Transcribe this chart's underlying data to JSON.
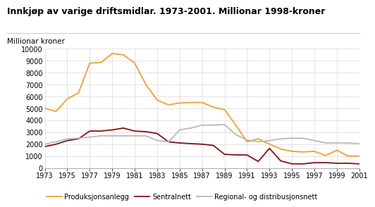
{
  "title": "Innkjøp av varige driftsmidlar. 1973-2001. Millionar 1998-kroner",
  "ylabel": "Millionar kroner",
  "years": [
    1973,
    1974,
    1975,
    1976,
    1977,
    1978,
    1979,
    1980,
    1981,
    1982,
    1983,
    1984,
    1985,
    1986,
    1987,
    1988,
    1989,
    1990,
    1991,
    1992,
    1993,
    1994,
    1995,
    1996,
    1997,
    1998,
    1999,
    2000,
    2001
  ],
  "produksjonsanlegg": [
    5000,
    4750,
    5800,
    6300,
    8800,
    8850,
    9600,
    9500,
    8800,
    7000,
    5700,
    5300,
    5450,
    5500,
    5500,
    5100,
    4900,
    3600,
    2200,
    2450,
    2000,
    1600,
    1400,
    1350,
    1400,
    1050,
    1500,
    1000,
    1000
  ],
  "sentralnett": [
    1800,
    2000,
    2300,
    2450,
    3100,
    3100,
    3200,
    3350,
    3100,
    3050,
    2900,
    2200,
    2100,
    2050,
    2000,
    1900,
    1150,
    1100,
    1100,
    550,
    1650,
    600,
    350,
    350,
    450,
    450,
    400,
    400,
    350
  ],
  "regionalnett": [
    2000,
    2200,
    2450,
    2500,
    2600,
    2700,
    2700,
    2700,
    2700,
    2700,
    2300,
    2200,
    3200,
    3350,
    3600,
    3600,
    3650,
    2800,
    2350,
    2200,
    2300,
    2450,
    2500,
    2500,
    2300,
    2100,
    2100,
    2100,
    2050
  ],
  "prod_color": "#f0a030",
  "sent_color": "#7b1515",
  "reg_color": "#b8b8b8",
  "ylim": [
    0,
    10000
  ],
  "yticks": [
    0,
    1000,
    2000,
    3000,
    4000,
    5000,
    6000,
    7000,
    8000,
    9000,
    10000
  ],
  "xticks": [
    1973,
    1975,
    1977,
    1979,
    1981,
    1983,
    1985,
    1987,
    1989,
    1991,
    1993,
    1995,
    1997,
    1999,
    2001
  ],
  "legend_labels": [
    "Produksjonsanlegg",
    "Sentralnett",
    "Regional- og distribusjonsnett"
  ],
  "background_color": "#ffffff",
  "grid_color": "#d8d8d8",
  "title_fontsize": 9,
  "tick_fontsize": 7,
  "ylabel_fontsize": 7.5
}
